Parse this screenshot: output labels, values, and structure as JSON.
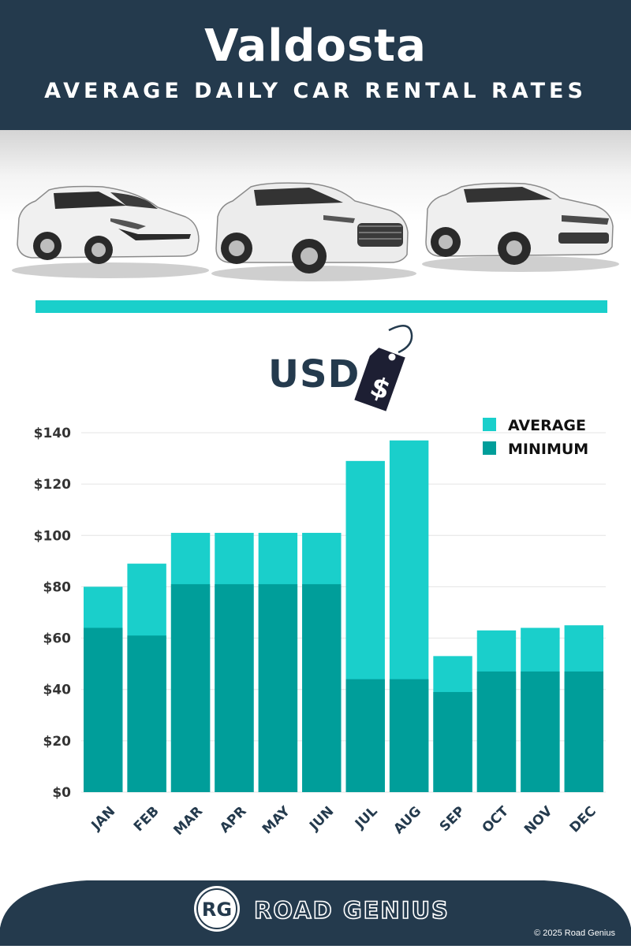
{
  "header": {
    "title": "Valdosta",
    "subtitle": "AVERAGE DAILY CAR RENTAL RATES"
  },
  "hero": {
    "cars": [
      "hatchback-car-icon",
      "suv-car-icon",
      "luxury-suv-car-icon"
    ]
  },
  "currency": {
    "label": "USD",
    "tag_symbol": "$"
  },
  "colors": {
    "navy": "#243a4d",
    "accent": "#1acfcb",
    "average": "#1acfcb",
    "minimum": "#009e9a"
  },
  "chart_data": {
    "type": "bar",
    "stacked": "overlay",
    "categories": [
      "JAN",
      "FEB",
      "MAR",
      "APR",
      "MAY",
      "JUN",
      "JUL",
      "AUG",
      "SEP",
      "OCT",
      "NOV",
      "DEC"
    ],
    "series": [
      {
        "name": "AVERAGE",
        "color": "#1acfcb",
        "values": [
          80,
          89,
          101,
          101,
          101,
          101,
          129,
          137,
          53,
          63,
          64,
          65
        ]
      },
      {
        "name": "MINIMUM",
        "color": "#009e9a",
        "values": [
          64,
          61,
          81,
          81,
          81,
          81,
          44,
          44,
          39,
          47,
          47,
          47
        ]
      }
    ],
    "ylim": [
      0,
      140
    ],
    "yticks": [
      0,
      20,
      40,
      60,
      80,
      100,
      120,
      140
    ],
    "ytick_labels": [
      "$0",
      "$20",
      "$40",
      "$60",
      "$80",
      "$100",
      "$120",
      "$140"
    ],
    "grid": true,
    "legend": "top-right",
    "xlabel": "",
    "ylabel": ""
  },
  "footer": {
    "logo_text": "RG",
    "brand": "ROAD GENIUS",
    "copyright": "© 2025 Road Genius"
  }
}
